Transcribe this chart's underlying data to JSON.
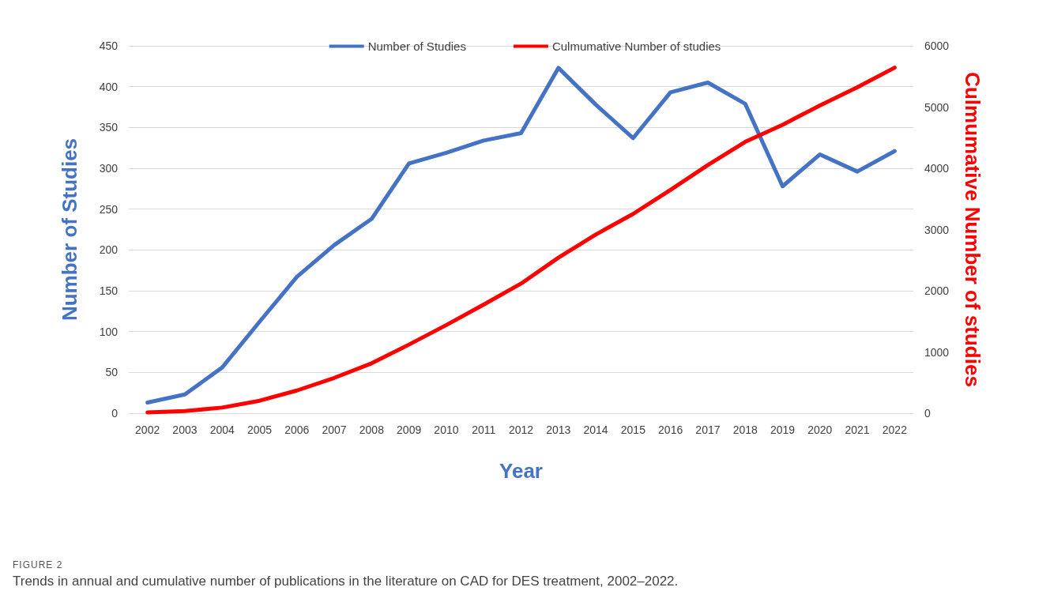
{
  "chart_data": {
    "type": "line",
    "xlabel": "Year",
    "ylabel": "Number of Studies",
    "y2label": "Culmumative Number of studies",
    "categories": [
      "2002",
      "2003",
      "2004",
      "2005",
      "2006",
      "2007",
      "2008",
      "2009",
      "2010",
      "2011",
      "2012",
      "2013",
      "2014",
      "2015",
      "2016",
      "2017",
      "2018",
      "2019",
      "2020",
      "2021",
      "2022"
    ],
    "series": [
      {
        "name": "Number of Studies",
        "color": "#4472c4",
        "values": [
          13,
          23,
          56,
          112,
          167,
          206,
          238,
          306,
          319,
          334,
          343,
          423,
          378,
          337,
          393,
          405,
          379,
          278,
          317,
          296,
          321
        ]
      },
      {
        "name": "Culmumative Number of studies",
        "color": "#ff0000",
        "axis": "y2",
        "values": [
          13,
          36,
          92,
          204,
          371,
          577,
          815,
          1121,
          1440,
          1774,
          2117,
          2540,
          2918,
          3255,
          3648,
          4053,
          4432,
          4710,
          5027,
          5323,
          5644
        ]
      }
    ],
    "ylim": [
      0,
      450
    ],
    "yticks": [
      0,
      50,
      100,
      150,
      200,
      250,
      300,
      350,
      400,
      450
    ],
    "y2lim": [
      0,
      6000
    ],
    "y2ticks": [
      0,
      1000,
      2000,
      3000,
      4000,
      5000,
      6000
    ],
    "grid": "y",
    "legend": "top",
    "marker": "none",
    "line_style": "solid",
    "annotations": [
      "FIGURE 2",
      "Trends in annual and cumulative number of publications in the literature on CAD for DES treatment, 2002–2022."
    ]
  }
}
